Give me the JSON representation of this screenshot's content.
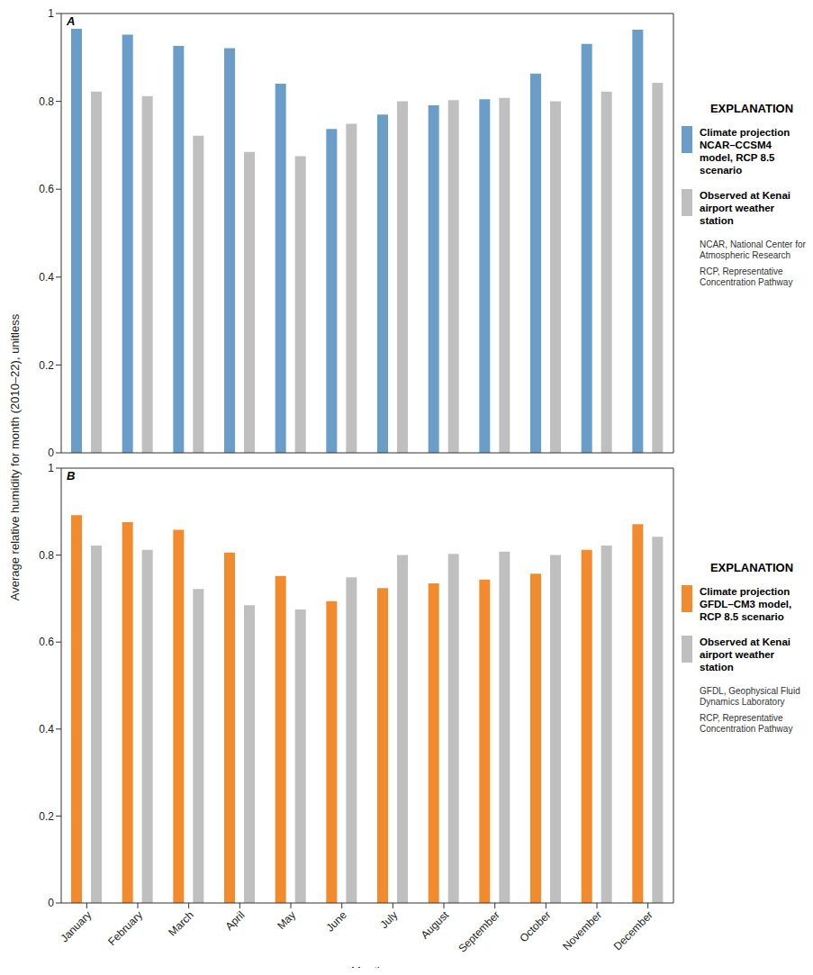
{
  "chart_data": [
    {
      "type": "bar",
      "panel": "A",
      "ylabel": "Average relative humidity for month (2010–22), unitless",
      "categories": [
        "January",
        "February",
        "March",
        "April",
        "May",
        "June",
        "July",
        "August",
        "September",
        "October",
        "November",
        "December"
      ],
      "tick_labels": "y",
      "series": [
        {
          "name": "Climate projection NCAR–CCSM4 model, RCP 8.5 scenario",
          "color": "#6a9ec9",
          "values": [
            0.965,
            0.952,
            0.926,
            0.921,
            0.84,
            0.737,
            0.77,
            0.791,
            0.805,
            0.863,
            0.931,
            0.963
          ]
        },
        {
          "name": "Observed at Kenai airport weather station",
          "color": "#bfbfbf",
          "values": [
            0.822,
            0.812,
            0.722,
            0.685,
            0.675,
            0.749,
            0.8,
            0.803,
            0.808,
            0.8,
            0.822,
            0.842
          ]
        }
      ],
      "ylim": [
        0,
        1
      ],
      "yticks": [
        0,
        0.2,
        0.4,
        0.6,
        0.8,
        1
      ],
      "legend": "right",
      "legend_title": "EXPLANATION",
      "notes": [
        "NCAR, National Center for Atmospheric Research",
        "RCP, Representative Concentration Pathway"
      ]
    },
    {
      "type": "bar",
      "panel": "B",
      "xlabel": "Month",
      "categories": [
        "January",
        "February",
        "March",
        "April",
        "May",
        "June",
        "July",
        "August",
        "September",
        "October",
        "November",
        "December"
      ],
      "series": [
        {
          "name": "Climate projection GFDL–CM3 model, RCP 8.5 scenario",
          "color": "#f28a2e",
          "values": [
            0.892,
            0.876,
            0.858,
            0.806,
            0.752,
            0.694,
            0.724,
            0.735,
            0.744,
            0.757,
            0.812,
            0.871
          ]
        },
        {
          "name": "Observed at Kenai airport weather station",
          "color": "#bfbfbf",
          "values": [
            0.822,
            0.812,
            0.722,
            0.685,
            0.675,
            0.749,
            0.8,
            0.803,
            0.808,
            0.8,
            0.822,
            0.842
          ]
        }
      ],
      "ylim": [
        0,
        1
      ],
      "yticks": [
        0,
        0.2,
        0.4,
        0.6,
        0.8,
        1
      ],
      "legend": "right",
      "legend_title": "EXPLANATION",
      "notes": [
        "GFDL, Geophysical Fluid Dynamics Laboratory",
        "RCP, Representative Concentration Pathway"
      ]
    }
  ]
}
